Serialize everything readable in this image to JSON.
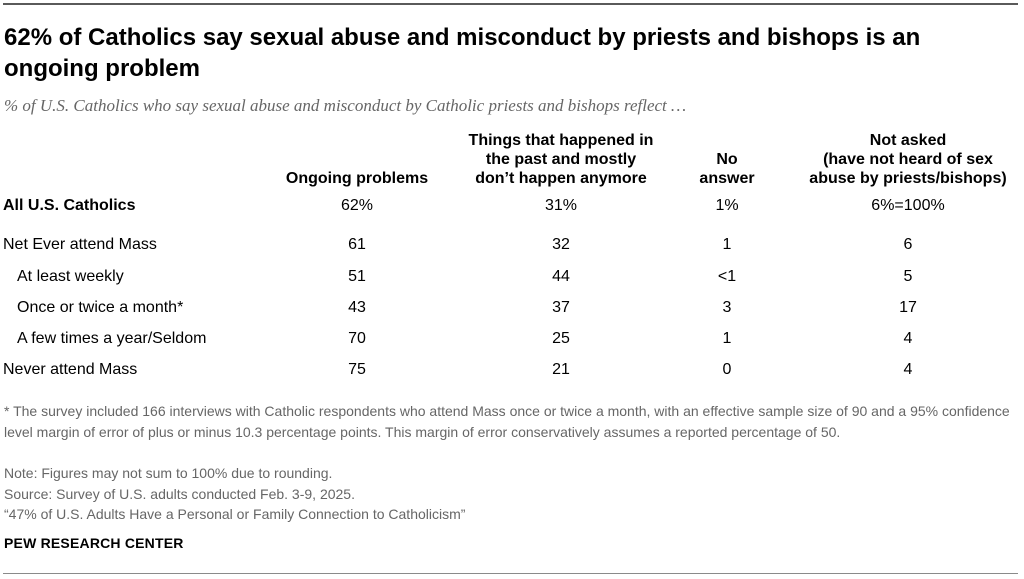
{
  "title": "62% of Catholics say sexual abuse and misconduct by priests and bishops is an ongoing problem",
  "subtitle": "% of U.S. Catholics who say sexual abuse and misconduct by Catholic priests and bishops reflect …",
  "chart_data": {
    "type": "table",
    "columns": [
      "Ongoing problems",
      "Things that happened in the past and mostly don’t happen anymore",
      "No answer",
      "Not asked (have not heard of sex abuse by priests/bishops)"
    ],
    "column_lines": [
      [
        "Ongoing problems"
      ],
      [
        "Things that happened in",
        "the past and mostly",
        "don’t happen anymore"
      ],
      [
        "No",
        "answer"
      ],
      [
        "Not asked",
        "(have not heard of sex",
        "abuse by priests/bishops)"
      ]
    ],
    "rows": [
      {
        "label": "All U.S. Catholics",
        "values": [
          "62%",
          "31%",
          "1%",
          "6%=100%"
        ]
      },
      {
        "label": "Net Ever attend Mass",
        "values": [
          "61",
          "32",
          "1",
          "6"
        ]
      },
      {
        "label": "At least weekly",
        "values": [
          "51",
          "44",
          "<1",
          "5"
        ]
      },
      {
        "label": "Once or twice a month*",
        "values": [
          "43",
          "37",
          "3",
          "17"
        ]
      },
      {
        "label": "A few times a year/Seldom",
        "values": [
          "70",
          "25",
          "1",
          "4"
        ]
      },
      {
        "label": "Never attend Mass",
        "values": [
          "75",
          "21",
          "0",
          "4"
        ]
      }
    ]
  },
  "footnote": "* The survey included 166 interviews with Catholic respondents who attend Mass once or twice a month, with an effective sample size of 90 and a 95% confidence level margin of error of plus or minus 10.3 percentage points. This margin of error conservatively assumes a reported percentage of 50.",
  "note": "Note: Figures may not sum to 100% due to rounding.",
  "source": "Source: Survey of U.S. adults conducted Feb. 3-9, 2025.",
  "report": "“47% of U.S. Adults Have a Personal or Family Connection to Catholicism”",
  "brand": "PEW RESEARCH CENTER",
  "colors": {
    "text": "#000000",
    "muted": "#666666",
    "rule": "#5a5a5a"
  }
}
